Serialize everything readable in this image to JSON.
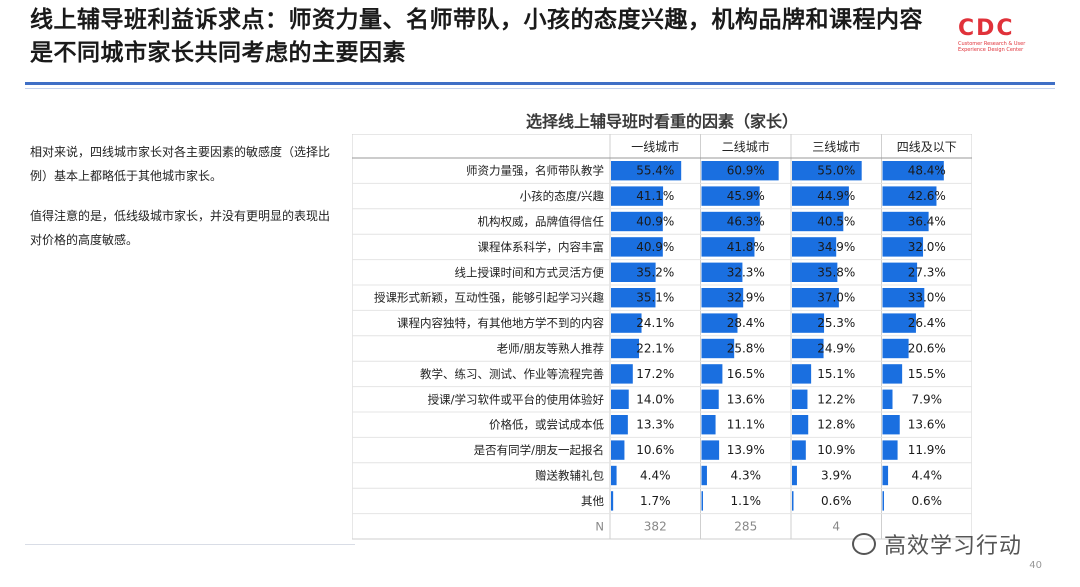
{
  "page": {
    "title": "线上辅导班利益诉求点：师资力量、名师带队，小孩的态度兴趣，机构品牌和课程内容是不同城市家长共同考虑的主要因素",
    "logo_text": "CDC",
    "logo_sub": "Customer Research & User Experience Design Center",
    "page_number": "40",
    "watermark": "高效学习行动",
    "accent_color": "#3f6fc6",
    "bar_color": "#1a6fe0"
  },
  "notes": [
    "相对来说，四线城市家长对各主要因素的敏感度（选择比例）基本上都略低于其他城市家长。",
    "值得注意的是，低线级城市家长，并没有更明显的表现出对价格的高度敏感。"
  ],
  "chart_data": {
    "type": "bar",
    "title": "选择线上辅导班时看重的因素（家长）",
    "categories": [
      "师资力量强，名师带队教学",
      "小孩的态度/兴趣",
      "机构权威，品牌值得信任",
      "课程体系科学，内容丰富",
      "线上授课时间和方式灵活方便",
      "授课形式新颖，互动性强，能够引起学习兴趣",
      "课程内容独特，有其他地方学不到的内容",
      "老师/朋友等熟人推荐",
      "教学、练习、测试、作业等流程完善",
      "授课/学习软件或平台的使用体验好",
      "价格低，或尝试成本低",
      "是否有同学/朋友一起报名",
      "赠送教辅礼包",
      "其他"
    ],
    "series": [
      {
        "name": "一线城市",
        "values": [
          55.4,
          41.1,
          40.9,
          40.9,
          35.2,
          35.1,
          24.1,
          22.1,
          17.2,
          14.0,
          13.3,
          10.6,
          4.4,
          1.7
        ],
        "labels": [
          "55.4%",
          "41.1%",
          "40.9%",
          "40.9%",
          "35.2%",
          "35.1%",
          "24.1%",
          "22.1%",
          "17.2%",
          "14.0%",
          "13.3%",
          "10.6%",
          "4.4%",
          "1.7%"
        ],
        "n": "382"
      },
      {
        "name": "二线城市",
        "values": [
          60.9,
          45.9,
          46.3,
          41.8,
          32.3,
          32.9,
          28.4,
          25.8,
          16.5,
          13.6,
          11.1,
          13.9,
          4.3,
          1.1
        ],
        "labels": [
          "60.9%",
          "45.9%",
          "46.3%",
          "41.8%",
          "32.3%",
          "32.9%",
          "28.4%",
          "25.8%",
          "16.5%",
          "13.6%",
          "11.1%",
          "13.9%",
          "4.3%",
          "1.1%"
        ],
        "n": "285"
      },
      {
        "name": "三线城市",
        "values": [
          55.0,
          44.9,
          40.5,
          34.9,
          35.8,
          37.0,
          25.3,
          24.9,
          15.1,
          12.2,
          12.8,
          10.9,
          3.9,
          0.6
        ],
        "labels": [
          "55.0%",
          "44.9%",
          "40.5%",
          "34.9%",
          "35.8%",
          "37.0%",
          "25.3%",
          "24.9%",
          "15.1%",
          "12.2%",
          "12.8%",
          "10.9%",
          "3.9%",
          "0.6%"
        ],
        "n": "4"
      },
      {
        "name": "四线及以下",
        "values": [
          48.4,
          42.6,
          36.4,
          32.0,
          27.3,
          33.0,
          26.4,
          20.6,
          15.5,
          7.9,
          13.6,
          11.9,
          4.4,
          0.6
        ],
        "labels": [
          "48.4%",
          "42.6%",
          "36.4%",
          "32.0%",
          "27.3%",
          "33.0%",
          "26.4%",
          "20.6%",
          "15.5%",
          "7.9%",
          "13.6%",
          "11.9%",
          "4.4%",
          "0.6%"
        ],
        "n": ""
      }
    ],
    "n_label": "N",
    "xlim": [
      0,
      70
    ]
  }
}
